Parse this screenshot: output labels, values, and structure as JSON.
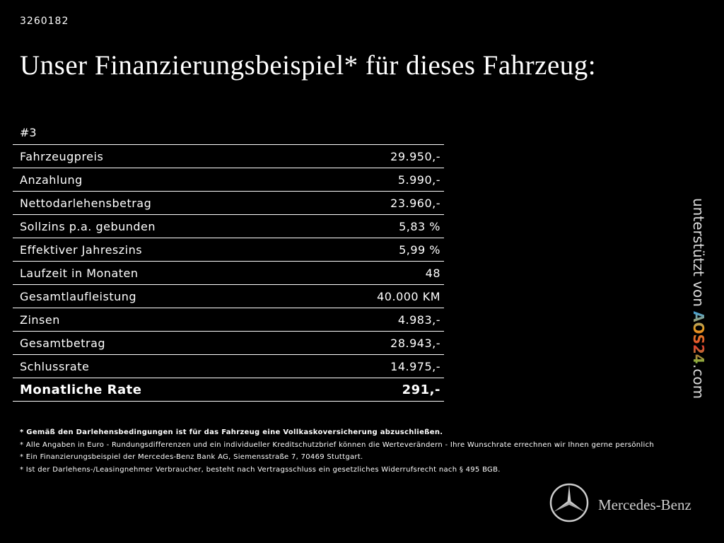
{
  "id": "3260182",
  "title": "Unser Finanzierungsbeispiel* für dieses Fahrzeug:",
  "table": {
    "header": "#3",
    "rows": [
      [
        "Fahrzeugpreis",
        "29.950,-"
      ],
      [
        "Anzahlung",
        "5.990,-"
      ],
      [
        "Nettodarlehensbetrag",
        "23.960,-"
      ],
      [
        "Sollzins p.a. gebunden",
        "5,83 %"
      ],
      [
        "Effektiver Jahreszins",
        "5,99 %"
      ],
      [
        "Laufzeit in Monaten",
        "48"
      ],
      [
        "Gesamtlaufleistung",
        "40.000 KM"
      ],
      [
        "Zinsen",
        "4.983,-"
      ],
      [
        "Gesamtbetrag",
        "28.943,-"
      ],
      [
        "Schlussrate",
        "14.975,-"
      ],
      [
        "Monatliche Rate",
        "291,-"
      ]
    ]
  },
  "footnotes": [
    "* Gemäß den Darlehensbedingungen ist für das Fahrzeug eine Vollkaskoversicherung abzuschließen.",
    "* Alle Angaben in Euro - Rundungsdifferenzen und ein individueller Kreditschutzbrief können die Werteverändern - Ihre Wunschrate errechnen wir Ihnen gerne persönlich",
    "* Ein Finanzierungsbeispiel der Mercedes-Benz Bank AG, Siemensstraße 7, 70469 Stuttgart.",
    "* Ist der Darlehens-/Leasingnehmer Verbraucher, besteht nach Vertragsschluss ein gesetzliches Widerrufsrecht nach § 495 BGB."
  ],
  "sidebar": {
    "prefix": "unterstützt von",
    "logo": "AOS24",
    "suffix": ".com"
  },
  "brand": "Mercedes-Benz"
}
